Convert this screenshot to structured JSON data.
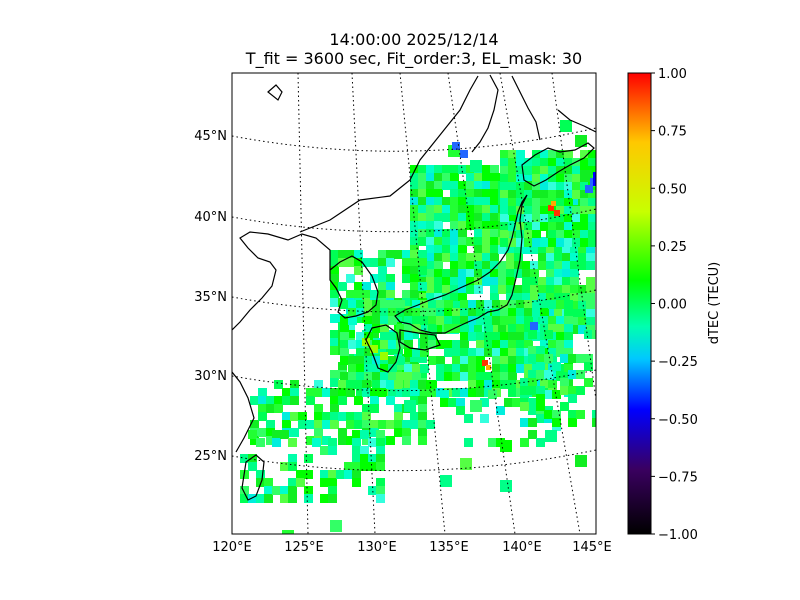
{
  "title": {
    "line1": "14:00:00 2025/12/14",
    "line2": "T_fit = 3600 sec, Fit_order:3, EL_mask: 30"
  },
  "map": {
    "lon_labels": [
      "120°E",
      "125°E",
      "130°E",
      "135°E",
      "140°E",
      "145°E"
    ],
    "lat_labels": [
      "45°N",
      "40°N",
      "35°N",
      "30°N",
      "25°N"
    ],
    "lon_range": [
      120,
      145
    ],
    "lat_range": [
      20,
      49
    ],
    "grid": "dotted"
  },
  "colorbar": {
    "label": "dTEC (TECU)",
    "ticks": [
      "1.00",
      "0.75",
      "0.50",
      "0.25",
      "0.00",
      "−0.25",
      "−0.50",
      "−0.75",
      "−1.00"
    ],
    "range": [
      -1.0,
      1.0
    ],
    "colormap": "nipy_spectral-like",
    "stops": [
      "#000000",
      "#3a0060",
      "#0000ff",
      "#00c8ff",
      "#00ff80",
      "#00ff00",
      "#c8ff00",
      "#ffc800",
      "#ff0000"
    ]
  }
}
